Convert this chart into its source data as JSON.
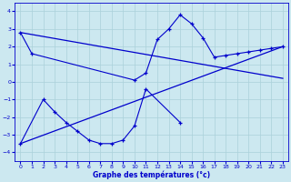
{
  "xlabel": "Graphe des températures (°c)",
  "background_color": "#cce8f0",
  "grid_color": "#aad0da",
  "line_color": "#0000cc",
  "series1_x": [
    0,
    1,
    10,
    11,
    12,
    13,
    14,
    15,
    16,
    17,
    18,
    19,
    20,
    21,
    22,
    23
  ],
  "series1_y": [
    2.8,
    1.6,
    0.1,
    0.5,
    2.4,
    3.0,
    3.8,
    3.3,
    2.5,
    1.4,
    1.5,
    1.6,
    1.7,
    1.8,
    1.9,
    2.0
  ],
  "series2_x": [
    0,
    2,
    3,
    4,
    5,
    6,
    7,
    8,
    9,
    10,
    11,
    14
  ],
  "series2_y": [
    -3.5,
    -1.0,
    -1.7,
    -2.3,
    -2.8,
    -3.3,
    -3.5,
    -3.5,
    -3.3,
    -2.5,
    -0.4,
    -2.3
  ],
  "line1_x": [
    0,
    23
  ],
  "line1_y": [
    -3.5,
    2.0
  ],
  "line2_x": [
    0,
    23
  ],
  "line2_y": [
    2.8,
    0.2
  ],
  "ylim": [
    -4.5,
    4.5
  ],
  "xlim": [
    -0.5,
    23.5
  ],
  "yticks": [
    -4,
    -3,
    -2,
    -1,
    0,
    1,
    2,
    3,
    4
  ],
  "xticks": [
    0,
    1,
    2,
    3,
    4,
    5,
    6,
    7,
    8,
    9,
    10,
    11,
    12,
    13,
    14,
    15,
    16,
    17,
    18,
    19,
    20,
    21,
    22,
    23
  ],
  "figwidth": 3.2,
  "figheight": 2.0,
  "dpi": 100
}
